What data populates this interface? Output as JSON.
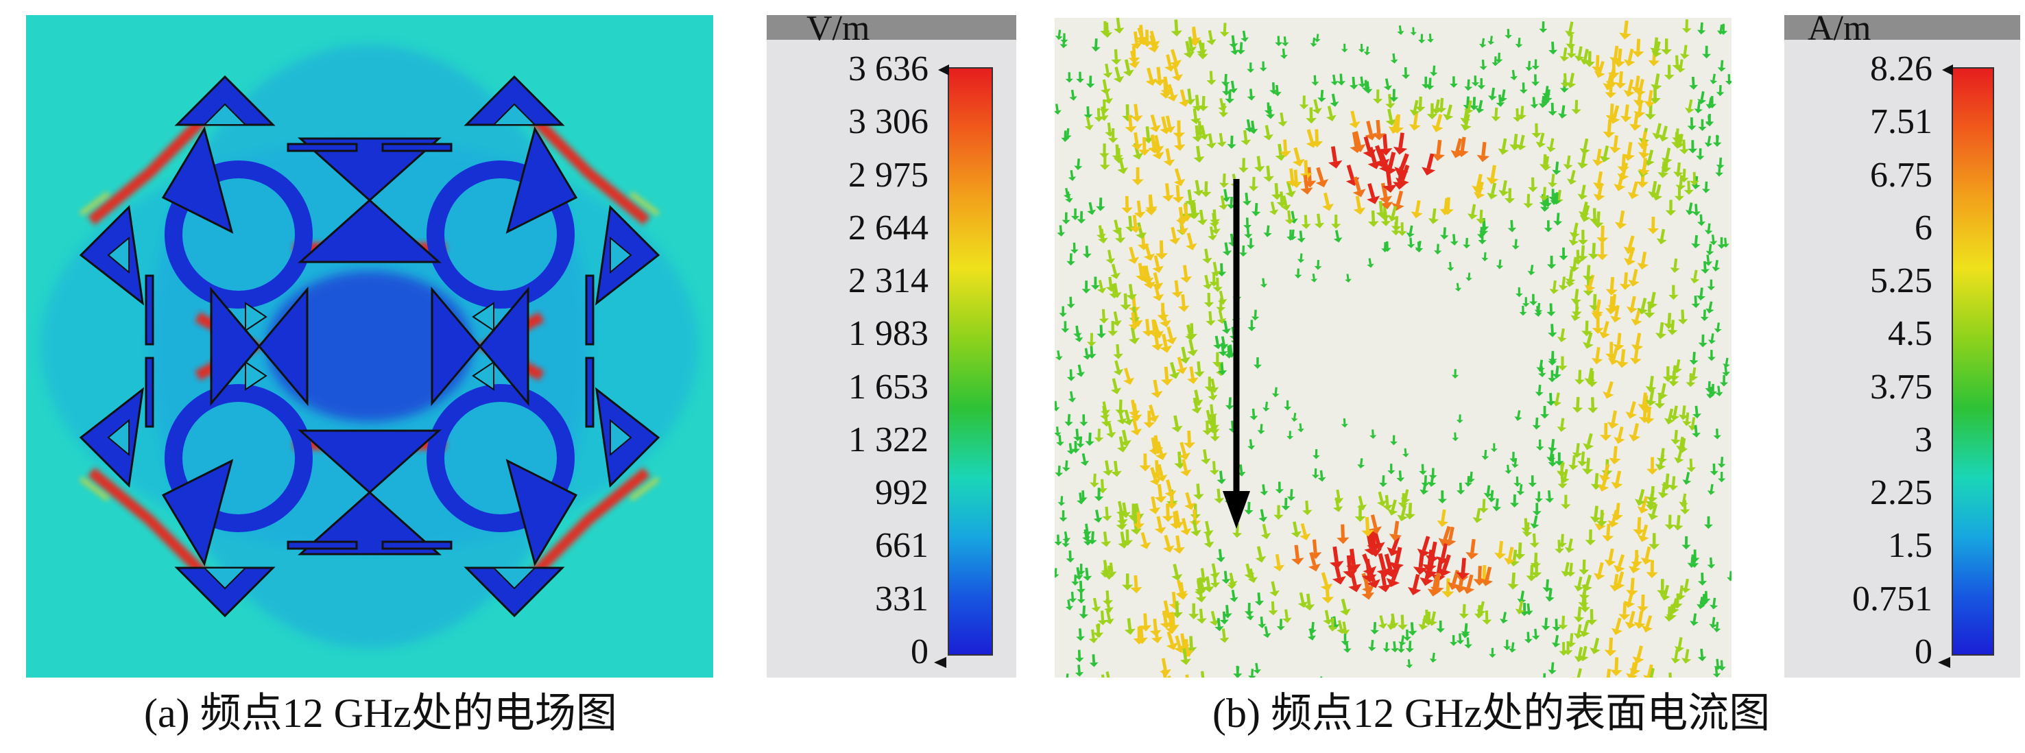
{
  "panel_a": {
    "caption": "(a) 频点12 GHz处的电场图",
    "legend": {
      "unit": "V/m",
      "ticks": [
        "3 636",
        "3 306",
        "2 975",
        "2 644",
        "2 314",
        "1 983",
        "1 653",
        "1 322",
        "992",
        "661",
        "331",
        "0"
      ]
    }
  },
  "panel_b": {
    "caption": "(b) 频点12 GHz处的表面电流图",
    "legend": {
      "unit": "A/m",
      "ticks": [
        "8.26",
        "7.51",
        "6.75",
        "6",
        "5.25",
        "4.5",
        "3.75",
        "3",
        "2.25",
        "1.5",
        "0.751",
        "0"
      ]
    }
  },
  "colors": {
    "field_background": "#24d3c9",
    "structure_blue": "#1631d6",
    "hot_red": "#e8261f",
    "current_background": "#efeee6",
    "arrow_black": "#000000"
  }
}
